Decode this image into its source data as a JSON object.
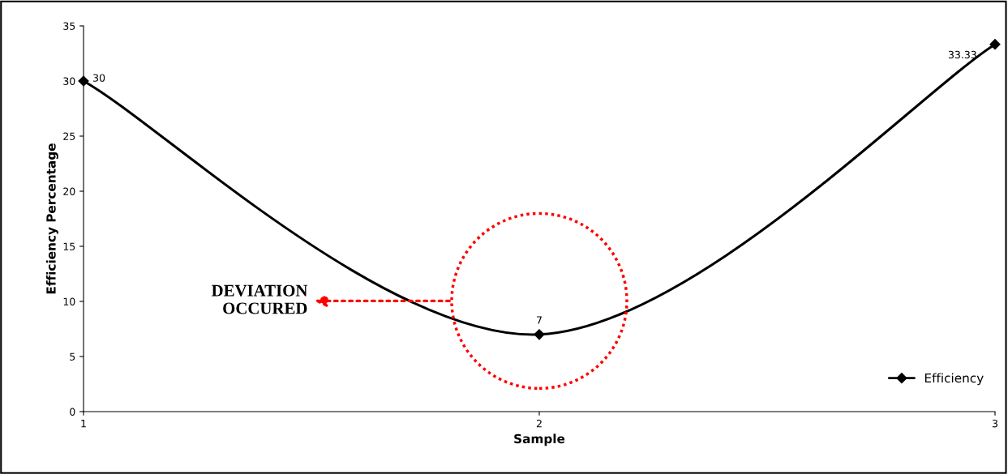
{
  "chart_data": {
    "type": "line",
    "x": [
      1,
      2,
      3
    ],
    "xlim": [
      1,
      3
    ],
    "xticks": [
      1,
      2,
      3
    ],
    "ylim": [
      0,
      35
    ],
    "yticks": [
      0,
      5,
      10,
      15,
      20,
      25,
      30,
      35
    ],
    "xlabel": "Sample",
    "ylabel": "Efficiency Percentage",
    "series": [
      {
        "name": "Efficiency",
        "color": "#000000",
        "values": [
          30,
          7,
          33.33
        ]
      }
    ],
    "data_labels": true,
    "marker": "diamond",
    "line_style": "solid",
    "grid": false,
    "legend": "bottom right",
    "annotations": [
      "DEVIATION\nOCCURED"
    ]
  }
}
